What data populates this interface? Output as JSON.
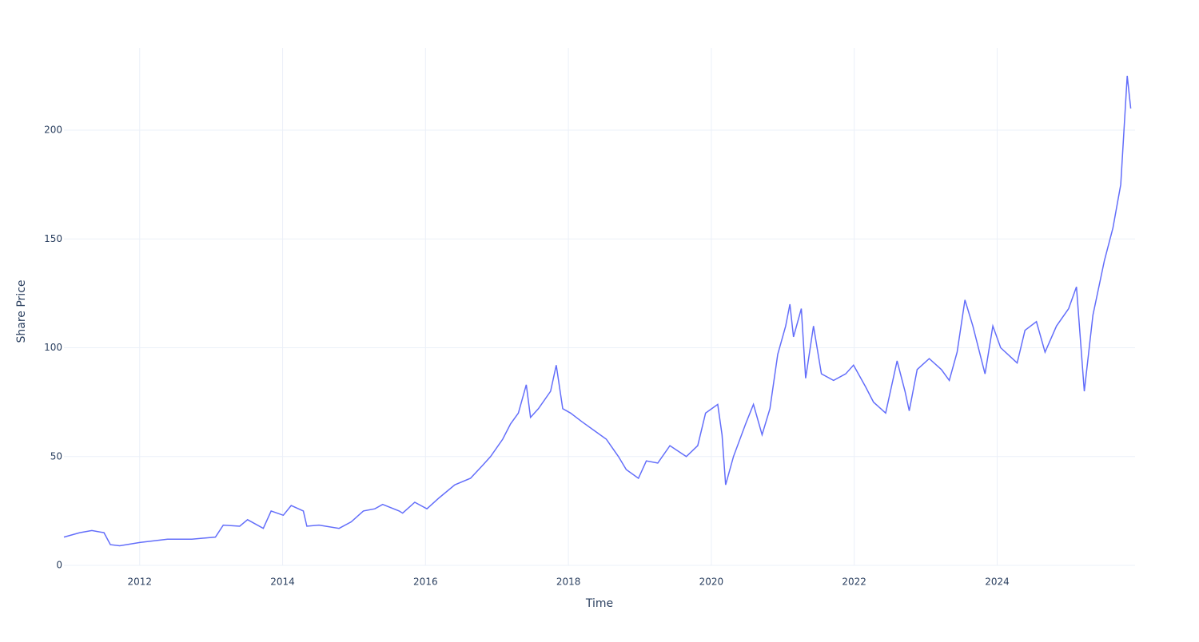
{
  "chart_data": {
    "type": "line",
    "x_label": "Time",
    "y_label": "Share Price",
    "color": "#636efa",
    "grid": true,
    "x": [
      2010.94,
      2011.16,
      2011.33,
      2011.5,
      2011.59,
      2011.72,
      2012.0,
      2012.39,
      2012.73,
      2013.06,
      2013.17,
      2013.4,
      2013.51,
      2013.73,
      2013.84,
      2014.01,
      2014.12,
      2014.29,
      2014.34,
      2014.51,
      2014.79,
      2014.96,
      2015.13,
      2015.29,
      2015.4,
      2015.63,
      2015.68,
      2015.85,
      2016.02,
      2016.19,
      2016.41,
      2016.63,
      2016.8,
      2016.91,
      2017.08,
      2017.19,
      2017.3,
      2017.41,
      2017.47,
      2017.58,
      2017.75,
      2017.83,
      2017.92,
      2018.03,
      2018.19,
      2018.36,
      2018.53,
      2018.7,
      2018.81,
      2018.98,
      2019.09,
      2019.25,
      2019.42,
      2019.65,
      2019.81,
      2019.92,
      2020.09,
      2020.15,
      2020.2,
      2020.31,
      2020.48,
      2020.59,
      2020.71,
      2020.82,
      2020.93,
      2021.04,
      2021.1,
      2021.15,
      2021.26,
      2021.32,
      2021.43,
      2021.54,
      2021.71,
      2021.88,
      2021.99,
      2022.16,
      2022.27,
      2022.44,
      2022.6,
      2022.71,
      2022.77,
      2022.88,
      2023.05,
      2023.22,
      2023.33,
      2023.44,
      2023.55,
      2023.66,
      2023.83,
      2023.94,
      2024.05,
      2024.28,
      2024.39,
      2024.55,
      2024.67,
      2024.83,
      2025.0,
      2025.11,
      2025.22,
      2025.34,
      2025.5,
      2025.62,
      2025.73,
      2025.82,
      2025.87
    ],
    "values": [
      13,
      15,
      16,
      15,
      9.5,
      9,
      10.5,
      12,
      12,
      13,
      18.5,
      18,
      21,
      17,
      25,
      23,
      27.5,
      25,
      18,
      18.5,
      17,
      20,
      25,
      26,
      28,
      25,
      24,
      29,
      26,
      31,
      37,
      40,
      46,
      50,
      58,
      65,
      70,
      83,
      68,
      72,
      80,
      92,
      72,
      70,
      66,
      62,
      58,
      50,
      44,
      40,
      48,
      47,
      55,
      50,
      55,
      70,
      74,
      60,
      37,
      50,
      65,
      74,
      60,
      72,
      97,
      110,
      120,
      105,
      118,
      86,
      110,
      88,
      85,
      88,
      92,
      82,
      75,
      70,
      94,
      80,
      71,
      90,
      95,
      90,
      85,
      98,
      122,
      110,
      88,
      110,
      100,
      93,
      108,
      112,
      98,
      110,
      118,
      128,
      80,
      115,
      140,
      155,
      175,
      225,
      210
    ],
    "xlim": [
      2010.94,
      2025.93
    ],
    "xticks": [
      2012,
      2014,
      2016,
      2018,
      2020,
      2022,
      2024
    ],
    "ylim": [
      0,
      237.8
    ],
    "yticks": [
      0,
      50,
      100,
      150,
      200
    ]
  }
}
